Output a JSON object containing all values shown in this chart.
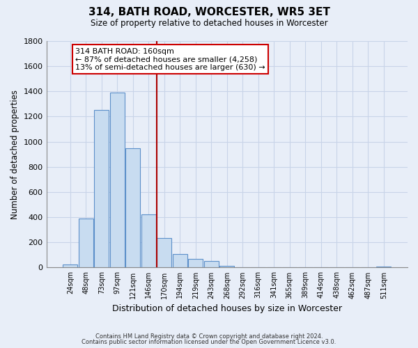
{
  "title": "314, BATH ROAD, WORCESTER, WR5 3ET",
  "subtitle": "Size of property relative to detached houses in Worcester",
  "xlabel": "Distribution of detached houses by size in Worcester",
  "ylabel": "Number of detached properties",
  "footer_lines": [
    "Contains HM Land Registry data © Crown copyright and database right 2024.",
    "Contains public sector information licensed under the Open Government Licence v3.0."
  ],
  "bin_labels": [
    "24sqm",
    "48sqm",
    "73sqm",
    "97sqm",
    "121sqm",
    "146sqm",
    "170sqm",
    "194sqm",
    "219sqm",
    "243sqm",
    "268sqm",
    "292sqm",
    "316sqm",
    "341sqm",
    "365sqm",
    "389sqm",
    "414sqm",
    "438sqm",
    "462sqm",
    "487sqm",
    "511sqm"
  ],
  "bar_values": [
    25,
    390,
    1255,
    1390,
    950,
    420,
    235,
    110,
    68,
    50,
    15,
    3,
    0,
    0,
    0,
    0,
    0,
    0,
    0,
    0,
    10
  ],
  "bar_color": "#c8dcf0",
  "bar_edge_color": "#5b8fc9",
  "annotation_text": "314 BATH ROAD: 160sqm\n← 87% of detached houses are smaller (4,258)\n13% of semi-detached houses are larger (630) →",
  "annotation_box_color": "white",
  "annotation_box_edge_color": "#cc0000",
  "vline_x": 5.5,
  "vline_color": "#aa0000",
  "ylim": [
    0,
    1800
  ],
  "yticks": [
    0,
    200,
    400,
    600,
    800,
    1000,
    1200,
    1400,
    1600,
    1800
  ],
  "grid_color": "#c8d4e8",
  "background_color": "#e8eef8",
  "ax_background_color": "#e8eef8"
}
